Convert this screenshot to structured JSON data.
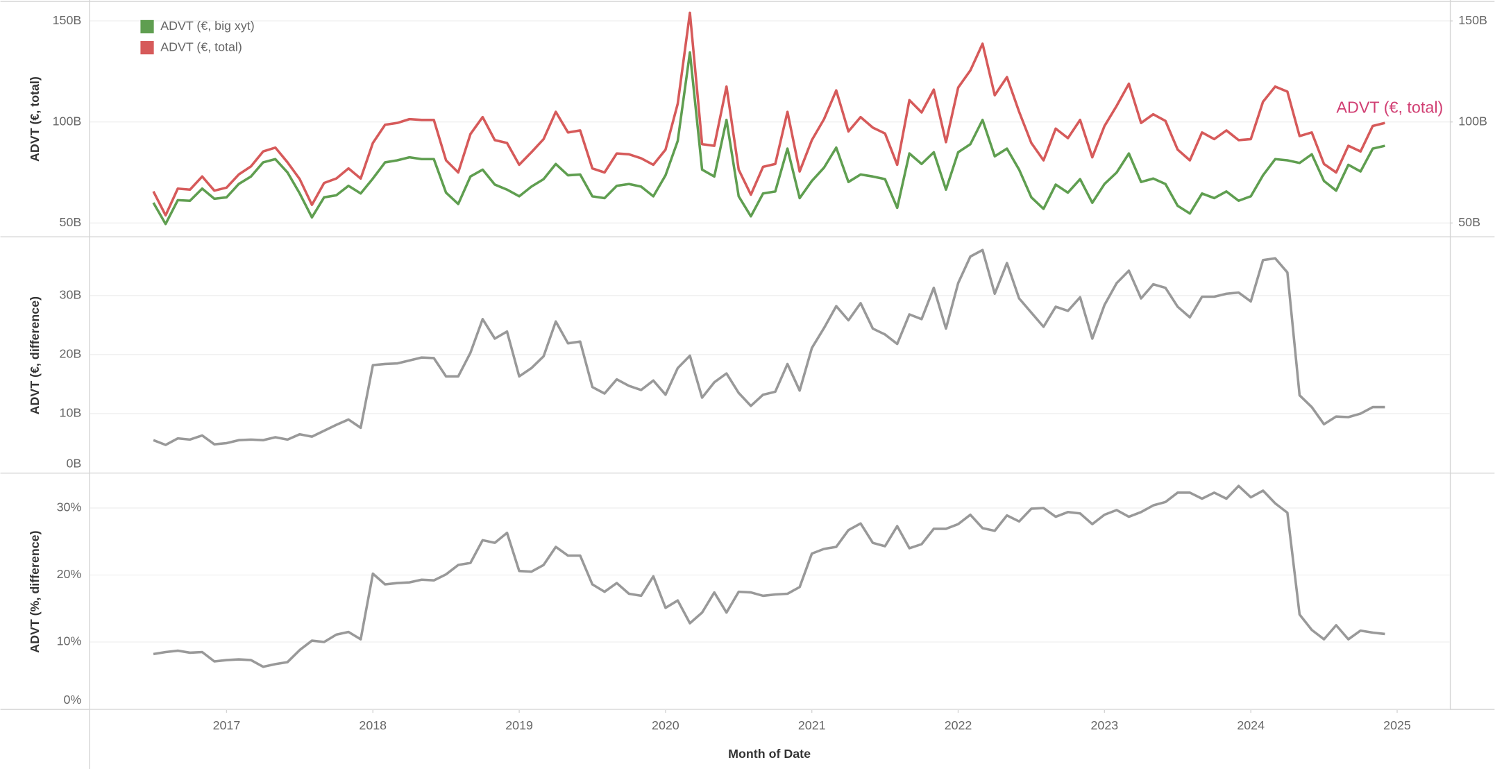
{
  "chart_data": [
    {
      "type": "line",
      "ylabel": "ADVT (€, total)",
      "annotation": "ADVT (€, total)",
      "annotation_color": "#d13f73",
      "legend": "top-left",
      "grid": true,
      "xlim": [
        2016.06,
        2025.36
      ],
      "ylim": [
        43.4,
        159.4
      ],
      "yticks": [
        {
          "value": 50,
          "label": "50B"
        },
        {
          "value": 100,
          "label": "100B"
        },
        {
          "value": 150,
          "label": "150B"
        }
      ],
      "y2lim": [
        43.4,
        159.4
      ],
      "y2ticks": [
        {
          "value": 50,
          "label": "50B"
        },
        {
          "value": 100,
          "label": "100B"
        },
        {
          "value": 150,
          "label": "150B"
        }
      ],
      "x": [
        "2016-07",
        "2016-08",
        "2016-09",
        "2016-10",
        "2016-11",
        "2016-12",
        "2017-01",
        "2017-02",
        "2017-03",
        "2017-04",
        "2017-05",
        "2017-06",
        "2017-07",
        "2017-08",
        "2017-09",
        "2017-10",
        "2017-11",
        "2017-12",
        "2018-01",
        "2018-02",
        "2018-03",
        "2018-04",
        "2018-05",
        "2018-06",
        "2018-07",
        "2018-08",
        "2018-09",
        "2018-10",
        "2018-11",
        "2018-12",
        "2019-01",
        "2019-02",
        "2019-03",
        "2019-04",
        "2019-05",
        "2019-06",
        "2019-07",
        "2019-08",
        "2019-09",
        "2019-10",
        "2019-11",
        "2019-12",
        "2020-01",
        "2020-02",
        "2020-03",
        "2020-04",
        "2020-05",
        "2020-06",
        "2020-07",
        "2020-08",
        "2020-09",
        "2020-10",
        "2020-11",
        "2020-12",
        "2021-01",
        "2021-02",
        "2021-03",
        "2021-04",
        "2021-05",
        "2021-06",
        "2021-07",
        "2021-08",
        "2021-09",
        "2021-10",
        "2021-11",
        "2021-12",
        "2022-01",
        "2022-02",
        "2022-03",
        "2022-04",
        "2022-05",
        "2022-06",
        "2022-07",
        "2022-08",
        "2022-09",
        "2022-10",
        "2022-11",
        "2022-12",
        "2023-01",
        "2023-02",
        "2023-03",
        "2023-04",
        "2023-05",
        "2023-06",
        "2023-07",
        "2023-08",
        "2023-09",
        "2023-10",
        "2023-11",
        "2023-12",
        "2024-01",
        "2024-02",
        "2024-03",
        "2024-04",
        "2024-05",
        "2024-06",
        "2024-07",
        "2024-08",
        "2024-09",
        "2024-10",
        "2024-11",
        "2024-12"
      ],
      "series": [
        {
          "name": "ADVT (€, big xyt)",
          "color": "#5f9e50",
          "values": [
            60,
            49.5,
            61.3,
            61,
            67,
            62,
            62.7,
            69.3,
            73,
            80,
            81.6,
            75,
            64.6,
            52.8,
            62.7,
            63.7,
            68.4,
            64.6,
            72,
            80,
            81,
            82.5,
            81.6,
            81.6,
            65,
            59.4,
            73,
            76.4,
            69,
            66.5,
            63.2,
            68,
            71.7,
            79.2,
            73.6,
            74,
            63.2,
            62.3,
            68.4,
            69.3,
            68,
            63.2,
            73.6,
            90.6,
            134.4,
            76.4,
            73,
            101,
            63.2,
            53.3,
            64.6,
            65.6,
            86.8,
            62.3,
            70.8,
            77.4,
            87.3,
            70.3,
            74,
            73,
            71.7,
            57.5,
            84.4,
            79.2,
            85,
            66.5,
            85,
            89,
            101,
            83,
            86.8,
            76.4,
            62.7,
            57,
            69,
            65,
            71.7,
            60,
            69.3,
            75,
            84.4,
            70.3,
            72,
            69.3,
            58.5,
            54.7,
            64.6,
            62.3,
            65.6,
            61,
            63.2,
            73.6,
            81.6,
            81,
            79.7,
            84,
            70.8,
            66,
            78.8,
            75.5,
            86.8,
            88.2
          ]
        },
        {
          "name": "ADVT (€, total)",
          "color": "#d65a5a",
          "axis": "y2",
          "values": [
            65.6,
            53.8,
            67,
            66.5,
            73,
            66,
            67.5,
            74,
            78,
            85.4,
            87.3,
            80,
            71.7,
            59,
            69.8,
            72,
            77,
            72,
            89.6,
            98.6,
            99.5,
            101.4,
            101,
            101,
            81,
            75,
            94,
            102.4,
            91,
            89.6,
            78.8,
            85,
            91.5,
            105,
            94.8,
            95.8,
            77,
            75,
            84.4,
            84,
            82,
            78.8,
            86.3,
            109,
            154,
            89,
            88.2,
            117.5,
            76.4,
            64,
            77.8,
            79.2,
            105,
            75.5,
            91,
            101.4,
            115.6,
            95.3,
            102.4,
            97.2,
            94.3,
            78.8,
            110.8,
            104.7,
            116,
            90,
            117,
            125.5,
            138.7,
            113.2,
            122.2,
            105,
            89.6,
            81,
            96.7,
            92,
            101,
            82.5,
            98,
            108,
            118.9,
            99.5,
            103.8,
            100.5,
            86.3,
            81,
            94.8,
            91.5,
            95.8,
            91,
            91.5,
            110,
            117.5,
            115,
            93,
            94.8,
            79.2,
            75,
            88.2,
            85.4,
            98,
            99.5
          ]
        }
      ]
    },
    {
      "type": "line",
      "ylabel": "ADVT (€, difference)",
      "grid": true,
      "color": "#999999",
      "xlim": [
        2016.06,
        2025.36
      ],
      "ylim": [
        0,
        39.7
      ],
      "yticks": [
        {
          "value": 0,
          "label": "0B"
        },
        {
          "value": 10,
          "label": "10B"
        },
        {
          "value": 20,
          "label": "20B"
        },
        {
          "value": 30,
          "label": "30B"
        }
      ],
      "x": [
        "2016-07",
        "2016-08",
        "2016-09",
        "2016-10",
        "2016-11",
        "2016-12",
        "2017-01",
        "2017-02",
        "2017-03",
        "2017-04",
        "2017-05",
        "2017-06",
        "2017-07",
        "2017-08",
        "2017-09",
        "2017-10",
        "2017-11",
        "2017-12",
        "2018-01",
        "2018-02",
        "2018-03",
        "2018-04",
        "2018-05",
        "2018-06",
        "2018-07",
        "2018-08",
        "2018-09",
        "2018-10",
        "2018-11",
        "2018-12",
        "2019-01",
        "2019-02",
        "2019-03",
        "2019-04",
        "2019-05",
        "2019-06",
        "2019-07",
        "2019-08",
        "2019-09",
        "2019-10",
        "2019-11",
        "2019-12",
        "2020-01",
        "2020-02",
        "2020-03",
        "2020-04",
        "2020-05",
        "2020-06",
        "2020-07",
        "2020-08",
        "2020-09",
        "2020-10",
        "2020-11",
        "2020-12",
        "2021-01",
        "2021-02",
        "2021-03",
        "2021-04",
        "2021-05",
        "2021-06",
        "2021-07",
        "2021-08",
        "2021-09",
        "2021-10",
        "2021-11",
        "2021-12",
        "2022-01",
        "2022-02",
        "2022-03",
        "2022-04",
        "2022-05",
        "2022-06",
        "2022-07",
        "2022-08",
        "2022-09",
        "2022-10",
        "2022-11",
        "2022-12",
        "2023-01",
        "2023-02",
        "2023-03",
        "2023-04",
        "2023-05",
        "2023-06",
        "2023-07",
        "2023-08",
        "2023-09",
        "2023-10",
        "2023-11",
        "2023-12",
        "2024-01",
        "2024-02",
        "2024-03",
        "2024-04",
        "2024-05",
        "2024-06",
        "2024-07",
        "2024-08",
        "2024-09",
        "2024-10",
        "2024-11",
        "2024-12"
      ],
      "values": [
        5.5,
        4.7,
        5.8,
        5.6,
        6.3,
        4.8,
        5,
        5.5,
        5.6,
        5.5,
        6,
        5.6,
        6.5,
        6.1,
        7.1,
        8.1,
        9,
        7.6,
        18.2,
        18.4,
        18.5,
        19,
        19.5,
        19.4,
        16.3,
        16.3,
        20.3,
        26,
        22.7,
        23.9,
        16.3,
        17.7,
        19.7,
        25.6,
        21.9,
        22.2,
        14.5,
        13.4,
        15.8,
        14.7,
        14,
        15.6,
        13.2,
        17.7,
        19.8,
        12.7,
        15.3,
        16.8,
        13.5,
        11.3,
        13.2,
        13.7,
        18.4,
        13.9,
        21.1,
        24.5,
        28.2,
        25.8,
        28.7,
        24.4,
        23.4,
        21.8,
        26.8,
        26,
        31.3,
        24.4,
        32.1,
        36.6,
        37.7,
        30.3,
        35.5,
        29.5,
        27.1,
        24.7,
        28.1,
        27.4,
        29.7,
        22.7,
        28.4,
        32.1,
        34.2,
        29.5,
        31.9,
        31.3,
        28.1,
        26.3,
        29.8,
        29.8,
        30.3,
        30.5,
        29,
        36,
        36.3,
        33.9,
        13.1,
        11.1,
        8.2,
        9.5,
        9.4,
        10,
        11.1,
        11.1
      ]
    },
    {
      "type": "line",
      "ylabel": "ADVT (%, difference)",
      "xlabel": "Month of Date",
      "grid": true,
      "color": "#999999",
      "xlim": [
        2016.06,
        2025.36
      ],
      "xticks": [
        2017,
        2018,
        2019,
        2020,
        2021,
        2022,
        2023,
        2024,
        2025
      ],
      "ylim": [
        0,
        35
      ],
      "yticks": [
        {
          "value": 0,
          "label": "0%"
        },
        {
          "value": 10,
          "label": "10%"
        },
        {
          "value": 20,
          "label": "20%"
        },
        {
          "value": 30,
          "label": "30%"
        }
      ],
      "x": [
        "2016-07",
        "2016-08",
        "2016-09",
        "2016-10",
        "2016-11",
        "2016-12",
        "2017-01",
        "2017-02",
        "2017-03",
        "2017-04",
        "2017-05",
        "2017-06",
        "2017-07",
        "2017-08",
        "2017-09",
        "2017-10",
        "2017-11",
        "2017-12",
        "2018-01",
        "2018-02",
        "2018-03",
        "2018-04",
        "2018-05",
        "2018-06",
        "2018-07",
        "2018-08",
        "2018-09",
        "2018-10",
        "2018-11",
        "2018-12",
        "2019-01",
        "2019-02",
        "2019-03",
        "2019-04",
        "2019-05",
        "2019-06",
        "2019-07",
        "2019-08",
        "2019-09",
        "2019-10",
        "2019-11",
        "2019-12",
        "2020-01",
        "2020-02",
        "2020-03",
        "2020-04",
        "2020-05",
        "2020-06",
        "2020-07",
        "2020-08",
        "2020-09",
        "2020-10",
        "2020-11",
        "2020-12",
        "2021-01",
        "2021-02",
        "2021-03",
        "2021-04",
        "2021-05",
        "2021-06",
        "2021-07",
        "2021-08",
        "2021-09",
        "2021-10",
        "2021-11",
        "2021-12",
        "2022-01",
        "2022-02",
        "2022-03",
        "2022-04",
        "2022-05",
        "2022-06",
        "2022-07",
        "2022-08",
        "2022-09",
        "2022-10",
        "2022-11",
        "2022-12",
        "2023-01",
        "2023-02",
        "2023-03",
        "2023-04",
        "2023-05",
        "2023-06",
        "2023-07",
        "2023-08",
        "2023-09",
        "2023-10",
        "2023-11",
        "2023-12",
        "2024-01",
        "2024-02",
        "2024-03",
        "2024-04",
        "2024-05",
        "2024-06",
        "2024-07",
        "2024-08",
        "2024-09",
        "2024-10",
        "2024-11",
        "2024-12"
      ],
      "values": [
        8.2,
        8.5,
        8.7,
        8.4,
        8.5,
        7.1,
        7.3,
        7.4,
        7.3,
        6.3,
        6.7,
        7,
        8.8,
        10.2,
        10,
        11.1,
        11.5,
        10.4,
        20.2,
        18.6,
        18.8,
        18.9,
        19.3,
        19.2,
        20.1,
        21.5,
        21.8,
        25.2,
        24.8,
        26.3,
        20.6,
        20.5,
        21.5,
        24.2,
        22.9,
        22.9,
        18.6,
        17.5,
        18.8,
        17.2,
        16.9,
        19.8,
        15.1,
        16.2,
        12.8,
        14.4,
        17.4,
        14.4,
        17.5,
        17.4,
        16.9,
        17.1,
        17.2,
        18.2,
        23.2,
        23.9,
        24.2,
        26.7,
        27.7,
        24.8,
        24.3,
        27.3,
        24,
        24.6,
        26.9,
        26.9,
        27.6,
        29,
        27,
        26.6,
        28.9,
        28,
        29.9,
        30,
        28.7,
        29.4,
        29.2,
        27.6,
        29,
        29.7,
        28.7,
        29.4,
        30.4,
        30.9,
        32.3,
        32.3,
        31.4,
        32.3,
        31.4,
        33.3,
        31.6,
        32.6,
        30.7,
        29.3,
        14.1,
        11.8,
        10.4,
        12.5,
        10.4,
        11.7,
        11.4,
        11.2
      ]
    }
  ]
}
